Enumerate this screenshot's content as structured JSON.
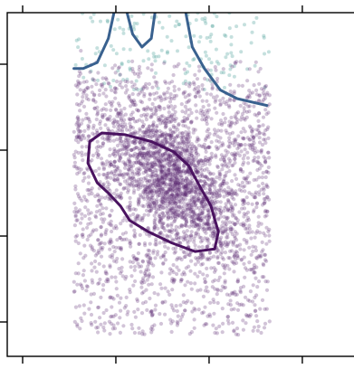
{
  "chart_data": {
    "type": "scatter",
    "title": "",
    "xlabel": "",
    "ylabel": "",
    "legend": "none",
    "grid": false,
    "xlim": [
      0,
      3.5
    ],
    "ylim": [
      0,
      4
    ],
    "x_ticks": [
      0,
      1,
      2,
      3
    ],
    "y_ticks": [
      0.4,
      1.4,
      2.4,
      3.4
    ],
    "x_tick_labels": [
      "",
      "",
      "",
      ""
    ],
    "y_tick_labels": [
      "",
      "",
      "",
      ""
    ],
    "points": {
      "count": 3600,
      "color": "#5c2a74",
      "opacity": 0.28,
      "x_range": [
        0.55,
        2.65
      ],
      "y_range": [
        0.25,
        3.6
      ],
      "dense_center": [
        1.6,
        2.05
      ]
    },
    "sparse_points": {
      "count": 160,
      "color": "#5aa6a0",
      "opacity": 0.35,
      "y_range": [
        3.1,
        4.0
      ]
    },
    "contours": [
      {
        "level": "high",
        "color": "#4a1260",
        "points": [
          [
            0.72,
            2.5
          ],
          [
            0.85,
            2.6
          ],
          [
            1.1,
            2.58
          ],
          [
            1.38,
            2.5
          ],
          [
            1.62,
            2.38
          ],
          [
            1.78,
            2.22
          ],
          [
            1.9,
            1.98
          ],
          [
            2.02,
            1.75
          ],
          [
            2.1,
            1.45
          ],
          [
            2.06,
            1.25
          ],
          [
            1.85,
            1.22
          ],
          [
            1.6,
            1.32
          ],
          [
            1.35,
            1.45
          ],
          [
            1.15,
            1.58
          ],
          [
            1.05,
            1.75
          ],
          [
            0.92,
            1.9
          ],
          [
            0.8,
            2.02
          ],
          [
            0.7,
            2.25
          ],
          [
            0.72,
            2.5
          ]
        ]
      },
      {
        "level": "low",
        "color": "#39618f",
        "points": [
          [
            0.55,
            3.35
          ],
          [
            0.65,
            3.35
          ],
          [
            0.8,
            3.42
          ],
          [
            0.92,
            3.7
          ],
          [
            0.98,
            4.0
          ]
        ],
        "points2": [
          [
            1.12,
            4.0
          ],
          [
            1.18,
            3.75
          ],
          [
            1.28,
            3.6
          ],
          [
            1.38,
            3.7
          ],
          [
            1.42,
            4.0
          ]
        ],
        "points3": [
          [
            1.75,
            4.0
          ],
          [
            1.82,
            3.6
          ],
          [
            1.95,
            3.35
          ],
          [
            2.12,
            3.1
          ],
          [
            2.3,
            3.0
          ],
          [
            2.5,
            2.95
          ],
          [
            2.62,
            2.92
          ]
        ]
      }
    ]
  }
}
